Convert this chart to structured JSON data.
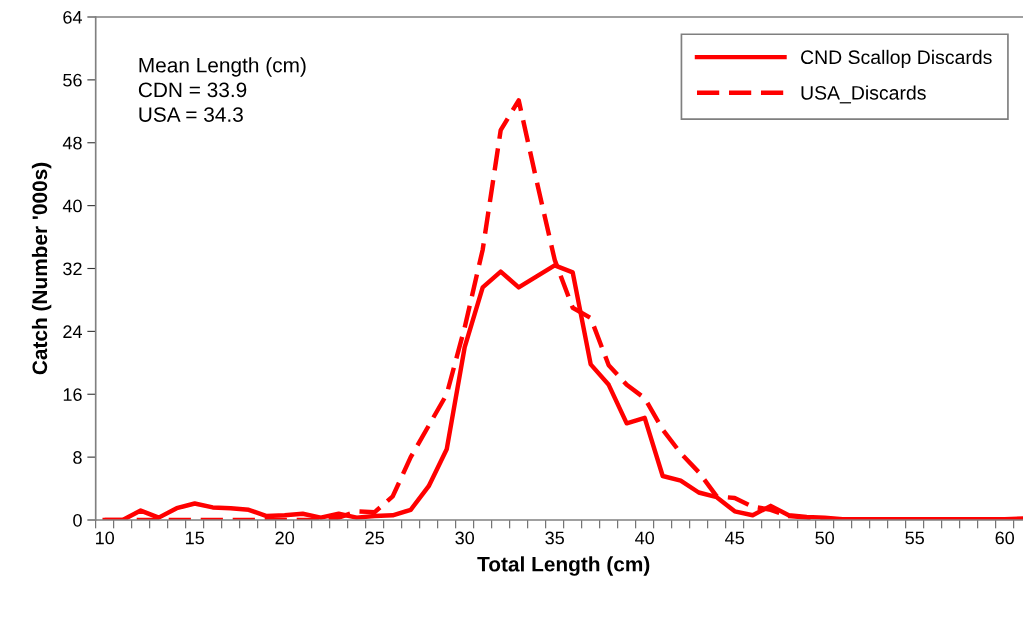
{
  "chart_data": {
    "type": "line",
    "xlabel": "Total Length (cm)",
    "ylabel": "Catch (Number '000s)",
    "categories": [
      "10",
      null,
      null,
      null,
      null,
      "15",
      null,
      null,
      null,
      null,
      "20",
      null,
      null,
      null,
      null,
      "25",
      null,
      null,
      null,
      null,
      "30",
      null,
      null,
      null,
      null,
      "35",
      null,
      null,
      null,
      null,
      "40",
      null,
      null,
      null,
      null,
      "45",
      null,
      null,
      null,
      null,
      "50",
      null,
      null,
      null,
      null,
      "55",
      null,
      null,
      null,
      null,
      "60",
      null
    ],
    "series": [
      {
        "name": "CND Scallop Discards",
        "color": "#ff0000",
        "line_style": "solid",
        "values": [
          0,
          0,
          1.2,
          0.3,
          1.5,
          2.1,
          1.6,
          1.5,
          1.3,
          0.5,
          0.6,
          0.8,
          0.3,
          0.8,
          0.3,
          0.5,
          0.6,
          1.3,
          4.3,
          9.0,
          22.0,
          29.6,
          31.6,
          29.6,
          31.0,
          32.4,
          31.5,
          19.8,
          17.2,
          12.3,
          13.0,
          5.6,
          5.0,
          3.5,
          2.9,
          1.1,
          0.6,
          1.8,
          0.6,
          0.4,
          0.3,
          0.1,
          0.1,
          0.1,
          0.1,
          0.1,
          0.1,
          0.1,
          0.1,
          0.1,
          0.1,
          0.2
        ]
      },
      {
        "name": "USA_Discards",
        "color": "#ff0000",
        "line_style": "dashed",
        "values": [
          0,
          0,
          0,
          0,
          0,
          0,
          0,
          0,
          0,
          0,
          0,
          0,
          0,
          0.3,
          1.1,
          1.0,
          3.0,
          8.0,
          12.0,
          16.0,
          24.5,
          34.4,
          49.6,
          53.4,
          43.1,
          33.1,
          27.0,
          25.7,
          19.7,
          17.2,
          15.5,
          11.5,
          8.5,
          6.1,
          3.0,
          2.8,
          1.7,
          1.3,
          0.5,
          0.3,
          0.1,
          0.1,
          0.1,
          0.1,
          0.1,
          0.1,
          0.1,
          0.1,
          0.1,
          0.1,
          0.1,
          0.1
        ]
      }
    ],
    "ylim": [
      0,
      64
    ],
    "yticks": [
      0,
      8,
      16,
      24,
      32,
      40,
      48,
      56,
      64
    ],
    "annotations": [
      "Mean Length (cm)\nCDN = 33.9\nUSA = 34.3"
    ],
    "legend": "top right",
    "grid": false,
    "marker": "none"
  }
}
